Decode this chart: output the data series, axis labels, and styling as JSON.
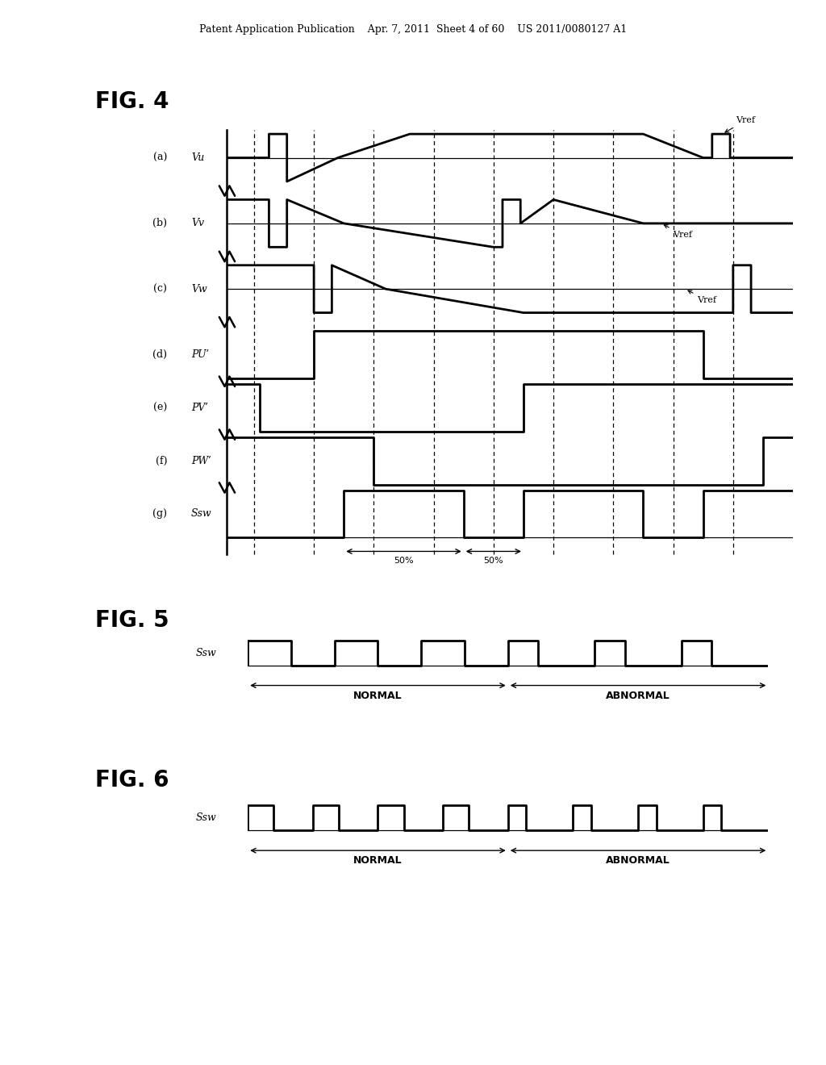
{
  "title_text": "Patent Application Publication    Apr. 7, 2011  Sheet 4 of 60    US 2011/0080127 A1",
  "fig4_label": "FIG. 4",
  "fig5_label": "FIG. 5",
  "fig6_label": "FIG. 6",
  "bg_color": "#ffffff",
  "line_color": "#000000",
  "signal_lw": 2.0,
  "dashed_lw": 0.9,
  "vref_label": "Vref",
  "normal_label": "NORMAL",
  "abnormal_label": "ABNORMAL",
  "fifty_pct": "50%"
}
